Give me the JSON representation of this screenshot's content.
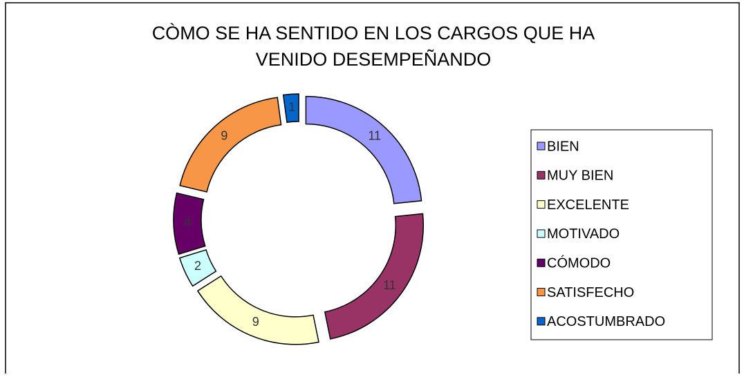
{
  "chart_data": {
    "type": "doughnut",
    "title": "CÒMO SE HA SENTIDO EN LOS CARGOS QUE HA VENIDO DESEMPEÑANDO",
    "categories": [
      "BIEN",
      "MUY BIEN",
      "EXCELENTE",
      "MOTIVADO",
      "CÓMODO",
      "SATISFECHO",
      "ACOSTUMBRADO"
    ],
    "values": [
      11,
      11,
      9,
      2,
      4,
      9,
      1
    ],
    "colors": [
      "#9999ff",
      "#993366",
      "#ffffcc",
      "#ccffff",
      "#660066",
      "#f79646",
      "#0066cc"
    ],
    "legend": "right"
  }
}
